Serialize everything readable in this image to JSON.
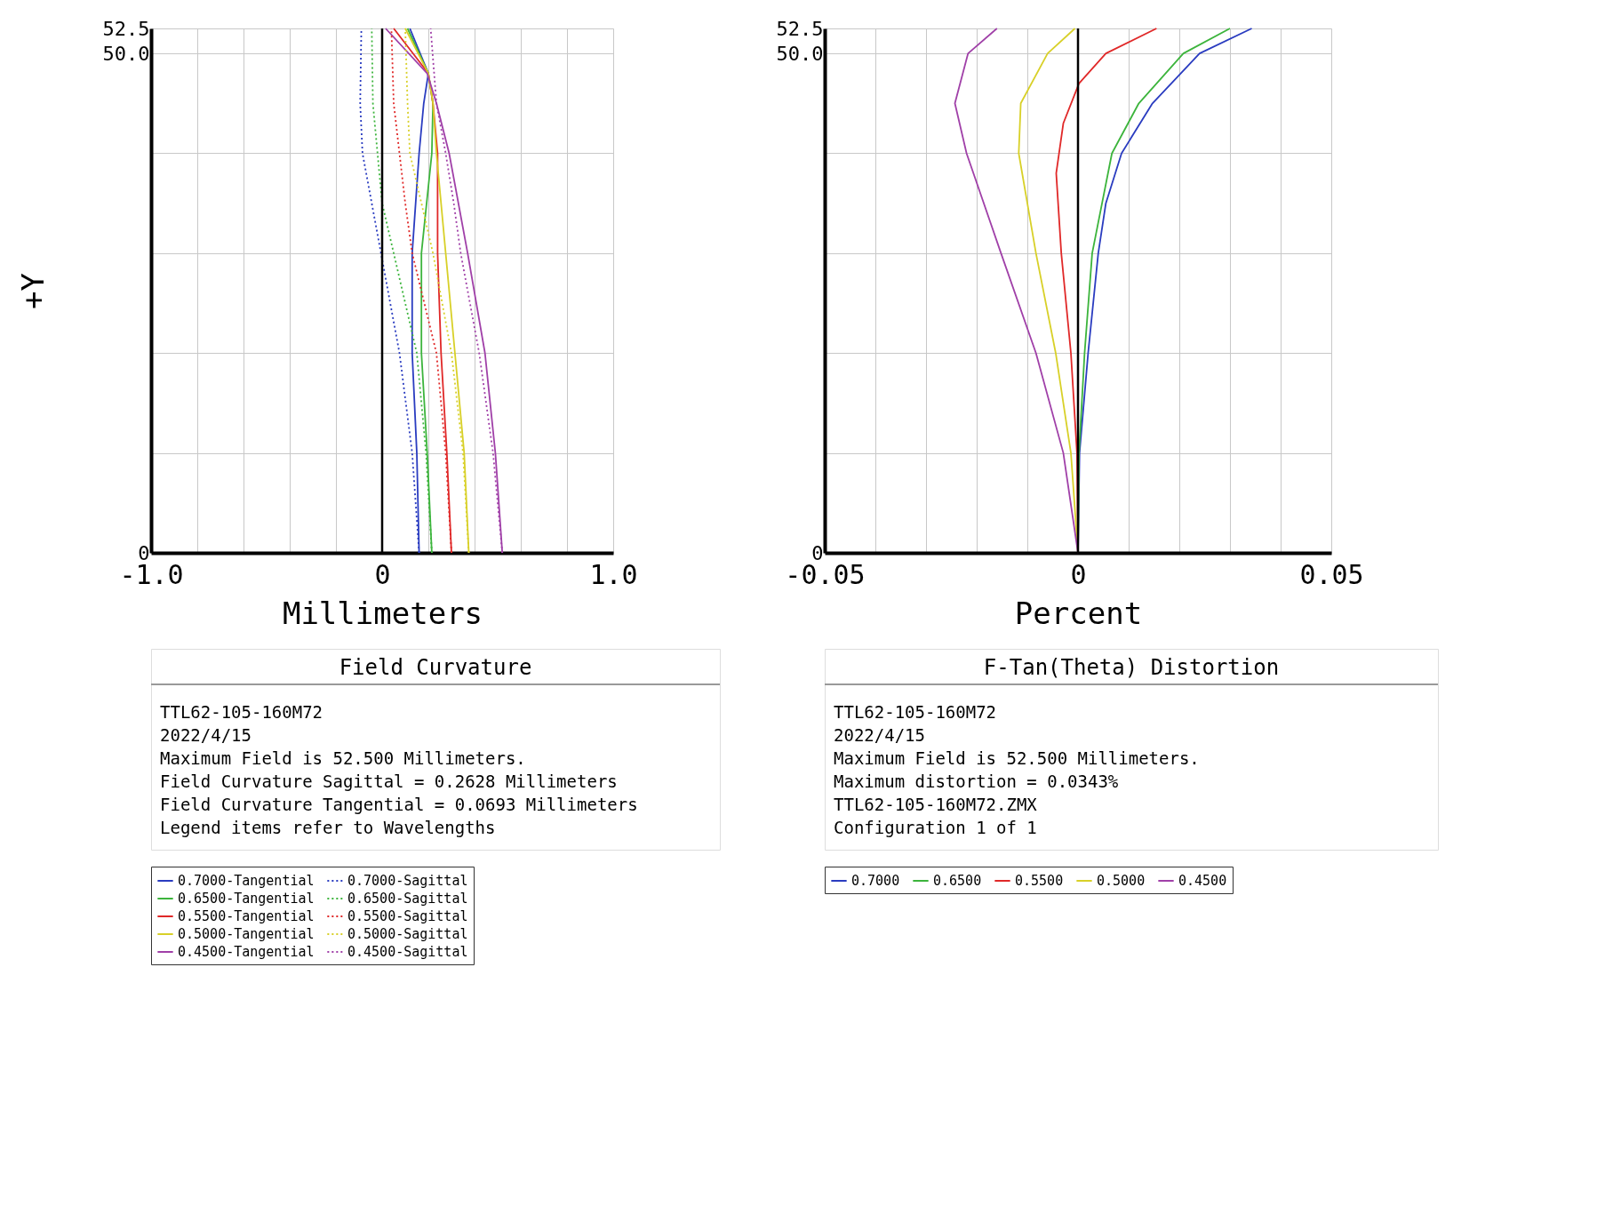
{
  "chart_data": [
    {
      "type": "line",
      "title": "Field Curvature",
      "xlabel": "Millimeters",
      "ylabel": "+Y",
      "xlim": [
        -1.0,
        1.0
      ],
      "xticks": [
        {
          "value": -1.0,
          "label": "-1.0"
        },
        {
          "value": -0.8,
          "label": null
        },
        {
          "value": -0.6,
          "label": null
        },
        {
          "value": -0.4,
          "label": null
        },
        {
          "value": -0.2,
          "label": null
        },
        0,
        {
          "value": 0.2,
          "label": null
        },
        {
          "value": 0.4,
          "label": null
        },
        {
          "value": 0.6,
          "label": null
        },
        {
          "value": 0.8,
          "label": null
        },
        {
          "value": 1.0,
          "label": "1.0"
        }
      ],
      "ylim": [
        0,
        52.5
      ],
      "yticks": [
        0,
        {
          "value": 10,
          "label": null
        },
        {
          "value": 20,
          "label": null
        },
        {
          "value": 30,
          "label": null
        },
        {
          "value": 40,
          "label": null
        },
        {
          "value": 50,
          "label": "50.0"
        },
        52.5
      ],
      "grid": true,
      "legend": "bottom",
      "marker": "none",
      "ref_lines": [
        {
          "axis": "x",
          "value": 0,
          "color": "#000000"
        }
      ],
      "series": [
        {
          "name": "0.7000-Tangential",
          "color": "#2a3cc0",
          "line_style": "solid",
          "x": [
            0.16,
            0.15,
            0.13,
            0.13,
            0.16,
            0.18,
            0.2,
            0.12
          ],
          "values": [
            0,
            10,
            20,
            30,
            40,
            45,
            48,
            52.5
          ]
        },
        {
          "name": "0.6500-Tangential",
          "color": "#3cb43c",
          "line_style": "solid",
          "x": [
            0.215,
            0.195,
            0.17,
            0.17,
            0.215,
            0.22,
            0.2,
            0.11
          ],
          "values": [
            0,
            10,
            20,
            30,
            40,
            45,
            48,
            52.5
          ]
        },
        {
          "name": "0.5500-Tangential",
          "color": "#e02828",
          "line_style": "solid",
          "x": [
            0.3,
            0.28,
            0.255,
            0.24,
            0.24,
            0.22,
            0.2,
            0.05
          ],
          "values": [
            0,
            10,
            20,
            30,
            40,
            45,
            48,
            52.5
          ]
        },
        {
          "name": "0.5000-Tangential",
          "color": "#d8d028",
          "line_style": "solid",
          "x": [
            0.375,
            0.355,
            0.315,
            0.275,
            0.235,
            0.22,
            0.2,
            0.1
          ],
          "values": [
            0,
            10,
            20,
            30,
            40,
            45,
            48,
            52.5
          ]
        },
        {
          "name": "0.4500-Tangential",
          "color": "#a040a8",
          "line_style": "solid",
          "x": [
            0.52,
            0.49,
            0.445,
            0.37,
            0.29,
            0.235,
            0.195,
            0.015
          ],
          "values": [
            0,
            10,
            20,
            30,
            40,
            45,
            48,
            52.5
          ]
        },
        {
          "name": "0.7000-Sagittal",
          "color": "#2a3cc0",
          "line_style": "dotted",
          "x": [
            0.16,
            0.13,
            0.075,
            -0.005,
            -0.045,
            -0.085,
            -0.095,
            -0.09
          ],
          "values": [
            0,
            10,
            20,
            30,
            35,
            40,
            45,
            52.5
          ]
        },
        {
          "name": "0.6500-Sagittal",
          "color": "#3cb43c",
          "line_style": "dotted",
          "x": [
            0.215,
            0.19,
            0.15,
            0.05,
            0.0,
            -0.02,
            -0.04,
            -0.045
          ],
          "values": [
            0,
            10,
            20,
            30,
            35,
            40,
            45,
            52.5
          ]
        },
        {
          "name": "0.5500-Sagittal",
          "color": "#e02828",
          "line_style": "dotted",
          "x": [
            0.3,
            0.275,
            0.235,
            0.13,
            0.1,
            0.075,
            0.05,
            0.04
          ],
          "values": [
            0,
            10,
            20,
            30,
            35,
            40,
            45,
            52.5
          ]
        },
        {
          "name": "0.5000-Sagittal",
          "color": "#d8d028",
          "line_style": "dotted",
          "x": [
            0.375,
            0.35,
            0.3,
            0.22,
            0.17,
            0.12,
            0.11,
            0.1
          ],
          "values": [
            0,
            10,
            20,
            30,
            35,
            40,
            45,
            52.5
          ]
        },
        {
          "name": "0.4500-Sagittal",
          "color": "#a040a8",
          "line_style": "dotted",
          "x": [
            0.52,
            0.48,
            0.42,
            0.34,
            0.31,
            0.275,
            0.235,
            0.21
          ],
          "values": [
            0,
            10,
            20,
            30,
            35,
            40,
            45,
            52.5
          ]
        }
      ],
      "annotations": [
        "TTL62-105-160M72",
        "2022/4/15",
        "Maximum Field is 52.500 Millimeters.",
        "Field Curvature Sagittal = 0.2628 Millimeters",
        "Field Curvature Tangential = 0.0693 Millimeters",
        "Legend items refer to Wavelengths"
      ]
    },
    {
      "type": "line",
      "title": "F-Tan(Theta) Distortion",
      "xlabel": "Percent",
      "xlim": [
        -0.05,
        0.05
      ],
      "xticks": [
        {
          "value": -0.05,
          "label": "-0.05"
        },
        {
          "value": -0.04,
          "label": null
        },
        {
          "value": -0.03,
          "label": null
        },
        {
          "value": -0.02,
          "label": null
        },
        {
          "value": -0.01,
          "label": null
        },
        0,
        {
          "value": 0.01,
          "label": null
        },
        {
          "value": 0.02,
          "label": null
        },
        {
          "value": 0.03,
          "label": null
        },
        {
          "value": 0.04,
          "label": null
        },
        {
          "value": 0.05,
          "label": "0.05"
        }
      ],
      "ylim": [
        0,
        52.5
      ],
      "yticks": [
        0,
        {
          "value": 10,
          "label": null
        },
        {
          "value": 20,
          "label": null
        },
        {
          "value": 30,
          "label": null
        },
        {
          "value": 40,
          "label": null
        },
        {
          "value": 50,
          "label": "50.0"
        },
        52.5
      ],
      "grid": true,
      "legend": "bottom",
      "marker": "none",
      "ref_lines": [
        {
          "axis": "x",
          "value": 0,
          "color": "#000000"
        }
      ],
      "series": [
        {
          "name": "0.7000",
          "color": "#2a3cc0",
          "line_style": "solid",
          "x": [
            0,
            0.0003,
            0.002,
            0.004,
            0.0055,
            0.0086,
            0.0147,
            0.024,
            0.0343
          ],
          "values": [
            0,
            10,
            20,
            30,
            35,
            40,
            45,
            50,
            52.5
          ]
        },
        {
          "name": "0.6500",
          "color": "#3cb43c",
          "line_style": "solid",
          "x": [
            0,
            0.0002,
            0.0013,
            0.0028,
            0.0067,
            0.012,
            0.0208,
            0.03
          ],
          "values": [
            0,
            10,
            20,
            30,
            40,
            45,
            50,
            52.5
          ]
        },
        {
          "name": "0.5500",
          "color": "#e02828",
          "line_style": "solid",
          "x": [
            0,
            -0.0002,
            -0.0014,
            -0.0033,
            -0.0043,
            -0.0029,
            0.0002,
            0.0055,
            0.0155
          ],
          "values": [
            0,
            10,
            20,
            30,
            38,
            43,
            47,
            50,
            52.5
          ]
        },
        {
          "name": "0.5000",
          "color": "#d8d028",
          "line_style": "solid",
          "x": [
            0,
            -0.0014,
            -0.0044,
            -0.0083,
            -0.0117,
            -0.0113,
            -0.006,
            -0.0006
          ],
          "values": [
            0,
            10,
            20,
            30,
            40,
            45,
            50,
            52.5
          ]
        },
        {
          "name": "0.4500",
          "color": "#a040a8",
          "line_style": "solid",
          "x": [
            0,
            -0.0029,
            -0.0083,
            -0.0152,
            -0.022,
            -0.0243,
            -0.0217,
            -0.016
          ],
          "values": [
            0,
            10,
            20,
            30,
            40,
            45,
            50,
            52.5
          ]
        }
      ],
      "annotations": [
        "TTL62-105-160M72",
        "2022/4/15",
        "Maximum Field is 52.500 Millimeters.",
        "Maximum distortion = 0.0343%",
        "TTL62-105-160M72.ZMX",
        "Configuration 1 of 1"
      ]
    }
  ]
}
